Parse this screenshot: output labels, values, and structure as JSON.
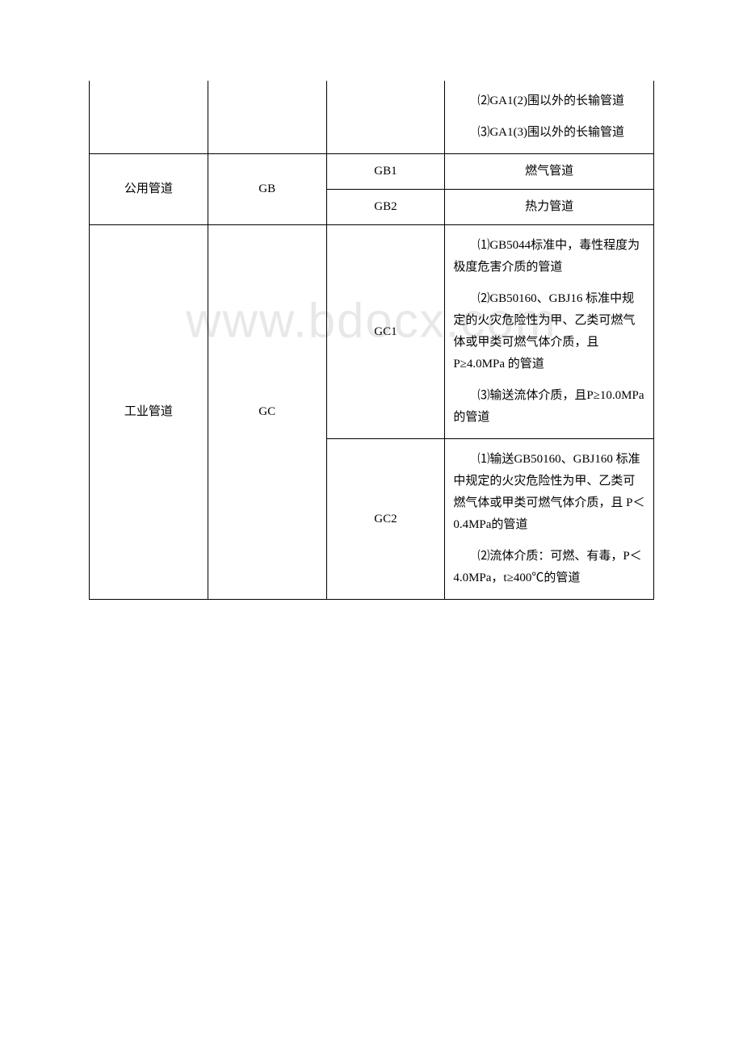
{
  "watermark": "www.bdocx.com",
  "table": {
    "rows": [
      {
        "col1": "",
        "col2": "",
        "col3": "",
        "col4_items": [
          "⑵GA1(2)围以外的长输管道",
          "⑶GA1(3)围以外的长输管道"
        ]
      },
      {
        "col1": "公用管道",
        "col2": "GB",
        "col3": "GB1",
        "col4_center": "燃气管道"
      },
      {
        "col3": "GB2",
        "col4_center": "热力管道"
      },
      {
        "col1": "工业管道",
        "col2": "GC",
        "col3": "GC1",
        "col4_items": [
          "⑴GB5044标准中，毒性程度为极度危害介质的管道",
          "⑵GB50160、GBJ16 标准中规定的火灾危险性为甲、乙类可燃气体或甲类可燃气体介质，且 P≥4.0MPa 的管道",
          "⑶输送流体介质，且P≥10.0MPa 的管道"
        ]
      },
      {
        "col3": "GC2",
        "col4_items": [
          "⑴输送GB50160、GBJ160 标准中规定的火灾危险性为甲、乙类可燃气体或甲类可燃气体介质，且 P＜0.4MPa的管道",
          "⑵流体介质：可燃、有毒，P＜4.0MPa，t≥400℃的管道"
        ]
      }
    ]
  }
}
